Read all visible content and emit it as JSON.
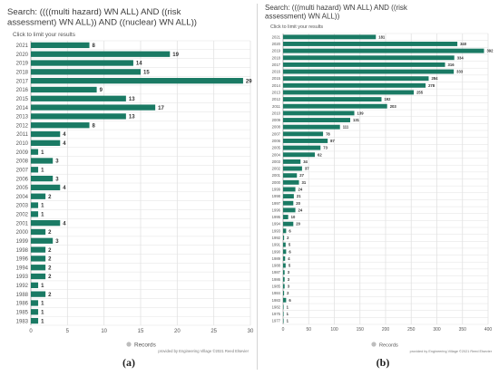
{
  "chart_data": [
    {
      "type": "bar",
      "orientation": "horizontal",
      "title": "Search: ((((multi hazard) WN ALL) AND ((risk assessment) WN ALL)) AND ((nuclear) WN ALL))",
      "subtitle": "Click to limit your results",
      "categories": [
        "2021",
        "2020",
        "2019",
        "2018",
        "2017",
        "2016",
        "2015",
        "2014",
        "2013",
        "2012",
        "2011",
        "2010",
        "2009",
        "2008",
        "2007",
        "2006",
        "2005",
        "2004",
        "2003",
        "2002",
        "2001",
        "2000",
        "1999",
        "1998",
        "1996",
        "1994",
        "1993",
        "1992",
        "1988",
        "1986",
        "1985",
        "1983"
      ],
      "values": [
        8,
        19,
        14,
        15,
        29,
        9,
        13,
        17,
        13,
        8,
        4,
        4,
        1,
        3,
        1,
        3,
        4,
        2,
        1,
        1,
        4,
        2,
        3,
        2,
        2,
        2,
        2,
        1,
        2,
        1,
        1,
        1
      ],
      "xlim": [
        0,
        30
      ],
      "xticks": [
        0,
        5,
        10,
        15,
        20,
        25,
        30
      ],
      "grid": true,
      "legend": "Records",
      "legend_position": "bottom",
      "footer": "provided by Engineering Village ©2021 Reed Elsevier",
      "panel_label": "(a)",
      "bar_color": "#1a7a64"
    },
    {
      "type": "bar",
      "orientation": "horizontal",
      "title": "Search: (((multi hazard) WN ALL) AND ((risk assessment) WN ALL))",
      "subtitle": "Click to limit your results",
      "categories": [
        "2021",
        "2020",
        "2019",
        "2018",
        "2017",
        "2016",
        "2015",
        "2014",
        "2013",
        "2012",
        "2011",
        "2010",
        "2009",
        "2008",
        "2007",
        "2006",
        "2005",
        "2004",
        "2003",
        "2002",
        "2001",
        "2000",
        "1999",
        "1998",
        "1997",
        "1996",
        "1995",
        "1994",
        "1993",
        "1992",
        "1991",
        "1990",
        "1989",
        "1988",
        "1987",
        "1986",
        "1985",
        "1984",
        "1983",
        "1982",
        "1975",
        "1977"
      ],
      "values": [
        181,
        340,
        392,
        334,
        316,
        333,
        284,
        278,
        255,
        192,
        203,
        139,
        131,
        111,
        78,
        87,
        73,
        62,
        34,
        37,
        27,
        31,
        24,
        21,
        20,
        24,
        10,
        20,
        6,
        2,
        5,
        6,
        4,
        5,
        3,
        3,
        3,
        2,
        6,
        1,
        1,
        1
      ],
      "xlim": [
        0,
        400
      ],
      "xticks": [
        0,
        50,
        100,
        150,
        200,
        250,
        300,
        350,
        400
      ],
      "grid": true,
      "legend": "Records",
      "legend_position": "bottom",
      "footer": "provided by Engineering Village ©2021 Reed Elsevier",
      "panel_label": "(b)",
      "bar_color": "#1a7a64"
    }
  ],
  "colors": {
    "bar": "#1a7a64",
    "grid": "#e2e2e2",
    "axis": "#b5b5b5",
    "title": "#3c3c3c",
    "text": "#555555"
  }
}
